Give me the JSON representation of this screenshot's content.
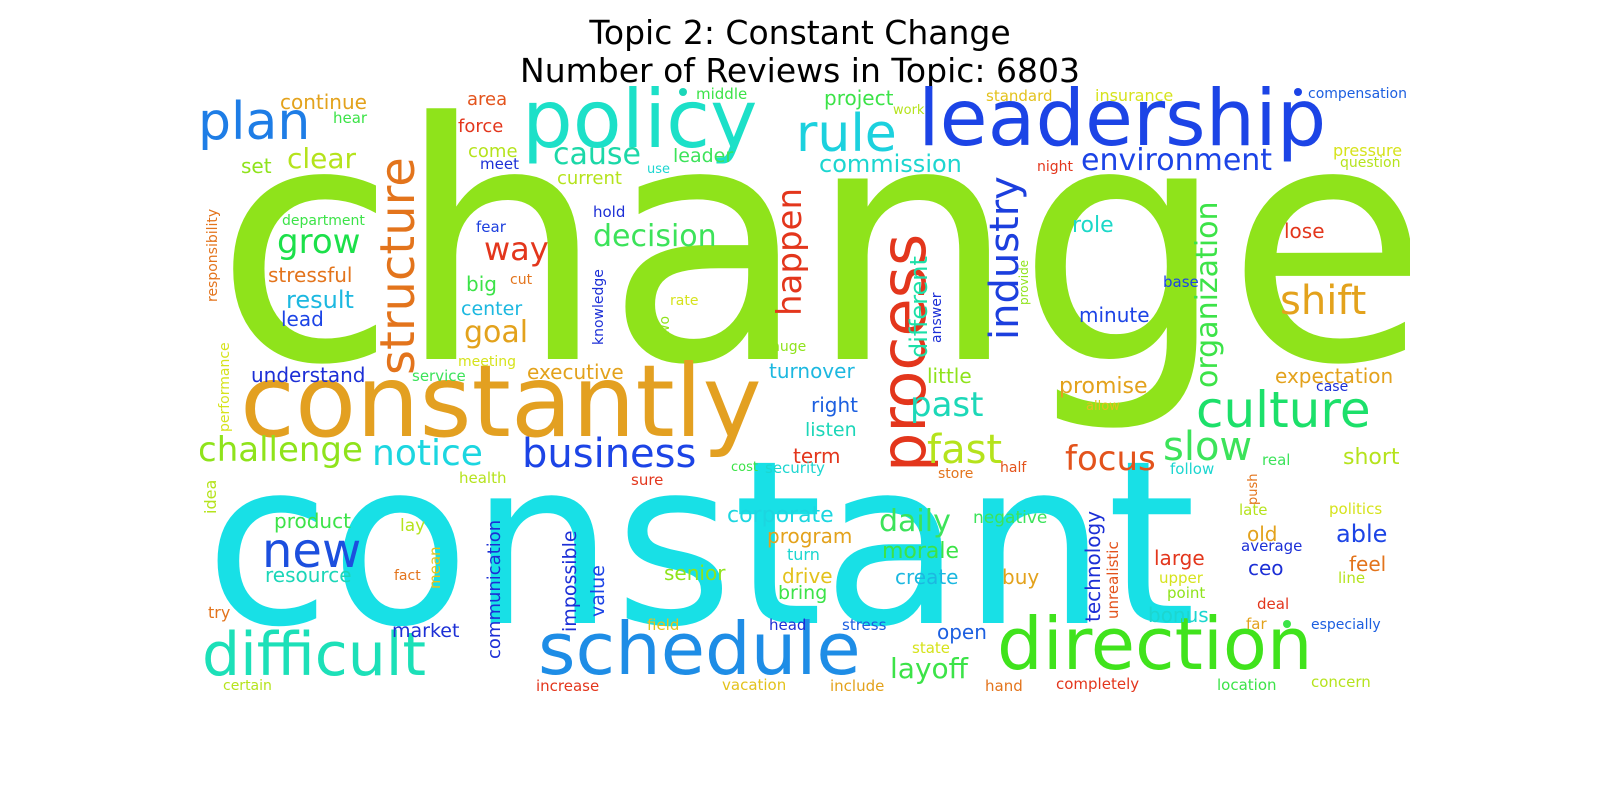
{
  "title": "Topic 2: Constant Change",
  "subtitle": "Number of Reviews in Topic: 6803",
  "words": [
    {
      "text": "change",
      "color": "#8fe31b"
    },
    {
      "text": "constant",
      "color": "#18e0e6"
    },
    {
      "text": "constantly",
      "color": "#e3a021"
    },
    {
      "text": "policy",
      "color": "#1ce0c8"
    },
    {
      "text": "leadership",
      "color": "#1c44e6"
    },
    {
      "text": "plan",
      "color": "#1e7de6"
    },
    {
      "text": "rule",
      "color": "#1cd1de"
    },
    {
      "text": "structure",
      "color": "#e3741c"
    },
    {
      "text": "process",
      "color": "#e3361c"
    },
    {
      "text": "industry",
      "color": "#1c3fde"
    },
    {
      "text": "organization",
      "color": "#3ce348"
    },
    {
      "text": "schedule",
      "color": "#1e8de6"
    },
    {
      "text": "direction",
      "color": "#40e31c"
    },
    {
      "text": "difficult",
      "color": "#1ce0b8"
    },
    {
      "text": "new",
      "color": "#1c4fde"
    },
    {
      "text": "business",
      "color": "#1c44e6"
    },
    {
      "text": "notice",
      "color": "#1cd6e0"
    },
    {
      "text": "challenge",
      "color": "#8fe31b"
    },
    {
      "text": "culture",
      "color": "#1ce06a"
    },
    {
      "text": "shift",
      "color": "#e3a21c"
    },
    {
      "text": "fast",
      "color": "#b5e31c"
    },
    {
      "text": "slow",
      "color": "#3ce35a"
    },
    {
      "text": "focus",
      "color": "#e3531c"
    },
    {
      "text": "past",
      "color": "#1cd8b8"
    },
    {
      "text": "environment",
      "color": "#1c44e6"
    },
    {
      "text": "commission",
      "color": "#1cd6d0"
    },
    {
      "text": "cause",
      "color": "#1cd8a8"
    },
    {
      "text": "clear",
      "color": "#b5e31c"
    },
    {
      "text": "grow",
      "color": "#1ce04a"
    },
    {
      "text": "goal",
      "color": "#e3a21c"
    },
    {
      "text": "way",
      "color": "#e3361c"
    },
    {
      "text": "decision",
      "color": "#3ce35a"
    },
    {
      "text": "happen",
      "color": "#e3361c"
    },
    {
      "text": "different",
      "color": "#1ce0a8"
    },
    {
      "text": "daily",
      "color": "#3ce35a"
    },
    {
      "text": "layoff",
      "color": "#3ce348"
    },
    {
      "text": "morale",
      "color": "#3ce348"
    },
    {
      "text": "corporate",
      "color": "#1cd6e0"
    },
    {
      "text": "continue",
      "color": "#e3a21c"
    },
    {
      "text": "area",
      "color": "#e3531c"
    },
    {
      "text": "force",
      "color": "#e3361c"
    },
    {
      "text": "come",
      "color": "#b5e31c"
    },
    {
      "text": "meet",
      "color": "#1c2fd6"
    },
    {
      "text": "middle",
      "color": "#3ce348"
    },
    {
      "text": "project",
      "color": "#3ce348"
    },
    {
      "text": "work",
      "color": "#b5e31c"
    },
    {
      "text": "standard",
      "color": "#e3c21c"
    },
    {
      "text": "insurance",
      "color": "#d6e31c"
    },
    {
      "text": "compensation",
      "color": "#1c5fe0"
    },
    {
      "text": "hear",
      "color": "#3ce348"
    },
    {
      "text": "set",
      "color": "#8fe31b"
    },
    {
      "text": "leader",
      "color": "#3ce35a"
    },
    {
      "text": "current",
      "color": "#b5e31c"
    },
    {
      "text": "use",
      "color": "#1cd6d0"
    },
    {
      "text": "night",
      "color": "#e3361c"
    },
    {
      "text": "pressure",
      "color": "#d6e31c"
    },
    {
      "text": "question",
      "color": "#b5e31c"
    },
    {
      "text": "department",
      "color": "#3ce348"
    },
    {
      "text": "fear",
      "color": "#1c3fde"
    },
    {
      "text": "hold",
      "color": "#1c2fd6"
    },
    {
      "text": "stressful",
      "color": "#e3741c"
    },
    {
      "text": "result",
      "color": "#1cb8e0"
    },
    {
      "text": "lead",
      "color": "#1c44e6"
    },
    {
      "text": "big",
      "color": "#3ce348"
    },
    {
      "text": "cut",
      "color": "#e3741c"
    },
    {
      "text": "center",
      "color": "#1cb8e0"
    },
    {
      "text": "rate",
      "color": "#d6e31c"
    },
    {
      "text": "wo",
      "color": "#8fe31b"
    },
    {
      "text": "knowledge",
      "color": "#1c2fd6"
    },
    {
      "text": "answer",
      "color": "#1c2fd6"
    },
    {
      "text": "provide",
      "color": "#8fe31b"
    },
    {
      "text": "role",
      "color": "#1cd8c8"
    },
    {
      "text": "lose",
      "color": "#e3361c"
    },
    {
      "text": "base",
      "color": "#1c44e6"
    },
    {
      "text": "minute",
      "color": "#1c44e6"
    },
    {
      "text": "responsibility",
      "color": "#e3741c"
    },
    {
      "text": "meeting",
      "color": "#d6e31c"
    },
    {
      "text": "service",
      "color": "#3ce35a"
    },
    {
      "text": "understand",
      "color": "#1c2fd6"
    },
    {
      "text": "executive",
      "color": "#e3a21c"
    },
    {
      "text": "huge",
      "color": "#8fe31b"
    },
    {
      "text": "turnover",
      "color": "#1cb8e0"
    },
    {
      "text": "little",
      "color": "#8fe31b"
    },
    {
      "text": "promise",
      "color": "#e3a21c"
    },
    {
      "text": "allow",
      "color": "#e3c21c"
    },
    {
      "text": "expectation",
      "color": "#e3a21c"
    },
    {
      "text": "case",
      "color": "#1c2fd6"
    },
    {
      "text": "performance",
      "color": "#d6e31c"
    },
    {
      "text": "right",
      "color": "#1c5fe0"
    },
    {
      "text": "listen",
      "color": "#1cd6b8"
    },
    {
      "text": "term",
      "color": "#e3361c"
    },
    {
      "text": "cost",
      "color": "#3ce348"
    },
    {
      "text": "security",
      "color": "#1cd6d0"
    },
    {
      "text": "store",
      "color": "#e3741c"
    },
    {
      "text": "half",
      "color": "#e3531c"
    },
    {
      "text": "follow",
      "color": "#1cd6d0"
    },
    {
      "text": "push",
      "color": "#e3741c"
    },
    {
      "text": "real",
      "color": "#3ce35a"
    },
    {
      "text": "short",
      "color": "#b5e31c"
    },
    {
      "text": "idea",
      "color": "#b5e31c"
    },
    {
      "text": "health",
      "color": "#b5e31c"
    },
    {
      "text": "sure",
      "color": "#e3361c"
    },
    {
      "text": "product",
      "color": "#3ce348"
    },
    {
      "text": "lay",
      "color": "#b5e31c"
    },
    {
      "text": "mean",
      "color": "#e3c21c"
    },
    {
      "text": "fact",
      "color": "#e3741c"
    },
    {
      "text": "resource",
      "color": "#1cd6b8"
    },
    {
      "text": "communication",
      "color": "#1c2fd6"
    },
    {
      "text": "impossible",
      "color": "#1c2fd6"
    },
    {
      "text": "value",
      "color": "#1c44e6"
    },
    {
      "text": "program",
      "color": "#e3a21c"
    },
    {
      "text": "turn",
      "color": "#1cd6d0"
    },
    {
      "text": "senior",
      "color": "#8fe31b"
    },
    {
      "text": "drive",
      "color": "#e3c21c"
    },
    {
      "text": "bring",
      "color": "#3ce348"
    },
    {
      "text": "create",
      "color": "#1cb8e0"
    },
    {
      "text": "negative",
      "color": "#3ce35a"
    },
    {
      "text": "technology",
      "color": "#1c2fd6"
    },
    {
      "text": "unrealistic",
      "color": "#e3531c"
    },
    {
      "text": "buy",
      "color": "#e3a21c"
    },
    {
      "text": "late",
      "color": "#b5e31c"
    },
    {
      "text": "old",
      "color": "#e3a21c"
    },
    {
      "text": "average",
      "color": "#1c2fd6"
    },
    {
      "text": "able",
      "color": "#1c44e6"
    },
    {
      "text": "politics",
      "color": "#d6e31c"
    },
    {
      "text": "large",
      "color": "#e3361c"
    },
    {
      "text": "ceo",
      "color": "#1c2fd6"
    },
    {
      "text": "feel",
      "color": "#e3741c"
    },
    {
      "text": "line",
      "color": "#b5e31c"
    },
    {
      "text": "upper",
      "color": "#d6e31c"
    },
    {
      "text": "point",
      "color": "#8fe31b"
    },
    {
      "text": "bonus",
      "color": "#1cd6d0"
    },
    {
      "text": "deal",
      "color": "#e3361c"
    },
    {
      "text": "try",
      "color": "#e3741c"
    },
    {
      "text": "market",
      "color": "#1c2fd6"
    },
    {
      "text": "field",
      "color": "#e3c21c"
    },
    {
      "text": "head",
      "color": "#1c2fd6"
    },
    {
      "text": "stress",
      "color": "#1c5fe0"
    },
    {
      "text": "open",
      "color": "#1c5fe0"
    },
    {
      "text": "state",
      "color": "#d6e31c"
    },
    {
      "text": "far",
      "color": "#e3a21c"
    },
    {
      "text": "especially",
      "color": "#1c5fe0"
    },
    {
      "text": "certain",
      "color": "#b5e31c"
    },
    {
      "text": "increase",
      "color": "#e3361c"
    },
    {
      "text": "vacation",
      "color": "#e3c21c"
    },
    {
      "text": "include",
      "color": "#e3a21c"
    },
    {
      "text": "hand",
      "color": "#e3741c"
    },
    {
      "text": "completely",
      "color": "#e3361c"
    },
    {
      "text": "location",
      "color": "#3ce348"
    },
    {
      "text": "concern",
      "color": "#b5e31c"
    }
  ],
  "dots": [
    {
      "color": "#1cd6b8"
    },
    {
      "color": "#1c44e6"
    },
    {
      "color": "#3ce348"
    }
  ]
}
